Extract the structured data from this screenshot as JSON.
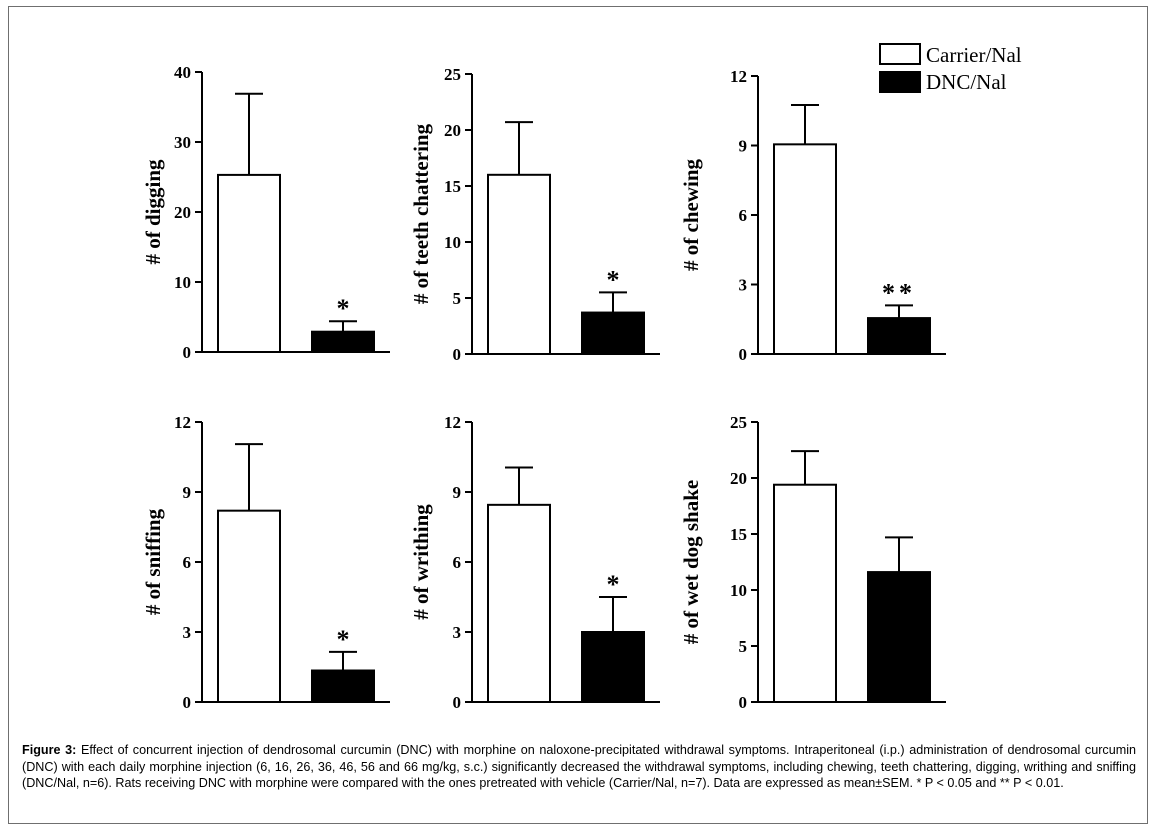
{
  "legend": {
    "items": [
      {
        "label": "Carrier/Nal",
        "fill": "#ffffff"
      },
      {
        "label": "DNC/Nal",
        "fill": "#000000"
      }
    ]
  },
  "caption": {
    "label": "Figure 3:",
    "text": "Effect of concurrent injection of dendrosomal curcumin (DNC) with morphine on naloxone-precipitated withdrawal symptoms. Intraperitoneal (i.p.) administration of dendrosomal curcumin (DNC) with each daily morphine injection (6, 16, 26, 36, 46, 56 and 66 mg/kg, s.c.) significantly decreased the withdrawal symptoms, including chewing, teeth chattering, digging, writhing and sniffing (DNC/Nal, n=6). Rats receiving DNC with morphine were compared with the ones pretreated with vehicle (Carrier/Nal, n=7). Data are expressed as mean±SEM. * P < 0.05 and ** P < 0.01."
  },
  "chart_data": [
    {
      "type": "bar",
      "ylabel": "# of digging",
      "categories": [
        "Carrier/Nal",
        "DNC/Nal"
      ],
      "values": [
        25.3,
        2.9
      ],
      "errors": [
        11.6,
        1.5
      ],
      "significance": [
        "",
        "*"
      ],
      "ylim": [
        0,
        40
      ],
      "yticks": [
        0,
        10,
        20,
        30,
        40
      ]
    },
    {
      "type": "bar",
      "ylabel": "# of teeth chattering",
      "categories": [
        "Carrier/Nal",
        "DNC/Nal"
      ],
      "values": [
        16.0,
        3.7
      ],
      "errors": [
        4.7,
        1.8
      ],
      "significance": [
        "",
        "*"
      ],
      "ylim": [
        0,
        25
      ],
      "yticks": [
        0,
        5,
        10,
        15,
        20,
        25
      ]
    },
    {
      "type": "bar",
      "ylabel": "# of chewing",
      "categories": [
        "Carrier/Nal",
        "DNC/Nal"
      ],
      "values": [
        9.05,
        1.55
      ],
      "errors": [
        1.7,
        0.55
      ],
      "significance": [
        "",
        "**"
      ],
      "ylim": [
        0,
        12
      ],
      "yticks": [
        0,
        3,
        6,
        9,
        12
      ]
    },
    {
      "type": "bar",
      "ylabel": "# of sniffing",
      "categories": [
        "Carrier/Nal",
        "DNC/Nal"
      ],
      "values": [
        8.2,
        1.35
      ],
      "errors": [
        2.85,
        0.8
      ],
      "significance": [
        "",
        "*"
      ],
      "ylim": [
        0,
        12
      ],
      "yticks": [
        0,
        3,
        6,
        9,
        12
      ]
    },
    {
      "type": "bar",
      "ylabel": "# of writhing",
      "categories": [
        "Carrier/Nal",
        "DNC/Nal"
      ],
      "values": [
        8.45,
        3.0
      ],
      "errors": [
        1.6,
        1.5
      ],
      "significance": [
        "",
        "*"
      ],
      "ylim": [
        0,
        12
      ],
      "yticks": [
        0,
        3,
        6,
        9,
        12
      ]
    },
    {
      "type": "bar",
      "ylabel": "# of wet dog shake",
      "categories": [
        "Carrier/Nal",
        "DNC/Nal"
      ],
      "values": [
        19.4,
        11.6
      ],
      "errors": [
        3.0,
        3.1
      ],
      "significance": [
        "",
        ""
      ],
      "ylim": [
        0,
        25
      ],
      "yticks": [
        0,
        5,
        10,
        15,
        20,
        25
      ]
    }
  ]
}
